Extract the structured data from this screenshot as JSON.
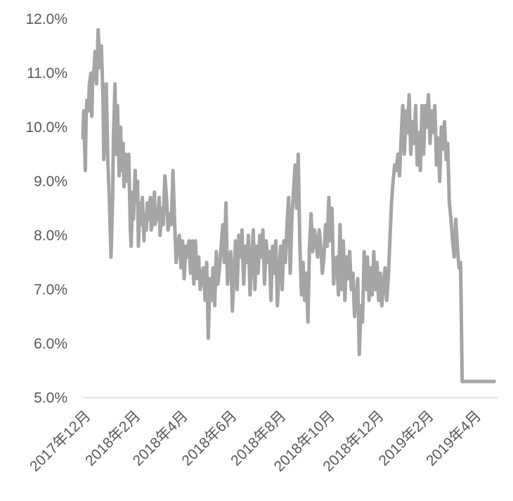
{
  "chart_data": {
    "type": "line",
    "title": "",
    "xlabel": "",
    "ylabel": "",
    "grid": false,
    "legend": "none",
    "line_color": "#a5a5a5",
    "text_color": "#595959",
    "axis_color": "#d9d9d9",
    "ylim": [
      0.05,
      0.12
    ],
    "x_range": [
      "2017-12-01",
      "2019-05-01"
    ],
    "yticks": [
      {
        "value": 0.05,
        "label": "5.0%"
      },
      {
        "value": 0.06,
        "label": "6.0%"
      },
      {
        "value": 0.07,
        "label": "7.0%"
      },
      {
        "value": 0.08,
        "label": "8.0%"
      },
      {
        "value": 0.09,
        "label": "9.0%"
      },
      {
        "value": 0.1,
        "label": "10.0%"
      },
      {
        "value": 0.11,
        "label": "11.0%"
      },
      {
        "value": 0.12,
        "label": "12.0%"
      }
    ],
    "xticks": [
      {
        "date": "2017-12-01",
        "label": "2017年12月"
      },
      {
        "date": "2018-02-01",
        "label": "2018年2月"
      },
      {
        "date": "2018-04-01",
        "label": "2018年4月"
      },
      {
        "date": "2018-06-01",
        "label": "2018年6月"
      },
      {
        "date": "2018-08-01",
        "label": "2018年8月"
      },
      {
        "date": "2018-10-01",
        "label": "2018年10月"
      },
      {
        "date": "2018-12-01",
        "label": "2018年12月"
      },
      {
        "date": "2019-02-01",
        "label": "2019年2月"
      },
      {
        "date": "2019-04-01",
        "label": "2019年4月"
      }
    ],
    "series": [
      {
        "x": [
          "2017-12-01",
          "2017-12-02",
          "2017-12-04",
          "2017-12-05",
          "2017-12-06",
          "2017-12-08",
          "2017-12-09",
          "2017-12-11",
          "2017-12-12",
          "2017-12-13",
          "2017-12-15",
          "2017-12-16",
          "2017-12-18",
          "2017-12-20",
          "2017-12-22",
          "2017-12-24",
          "2017-12-26",
          "2017-12-27",
          "2017-12-29",
          "2017-12-30",
          "2018-01-01",
          "2018-01-02",
          "2018-01-03",
          "2018-01-05",
          "2018-01-07",
          "2018-01-08",
          "2018-01-10",
          "2018-01-11",
          "2018-01-13",
          "2018-01-15",
          "2018-01-17",
          "2018-01-18",
          "2018-01-20",
          "2018-01-21",
          "2018-01-23",
          "2018-01-25",
          "2018-01-27",
          "2018-01-29",
          "2018-01-30",
          "2018-02-01",
          "2018-02-02",
          "2018-02-04",
          "2018-02-05",
          "2018-02-07",
          "2018-02-08",
          "2018-02-10",
          "2018-02-11",
          "2018-02-13",
          "2018-02-15",
          "2018-02-16",
          "2018-02-18",
          "2018-02-19",
          "2018-02-21",
          "2018-02-23",
          "2018-02-24",
          "2018-02-26",
          "2018-02-28",
          "2018-03-01",
          "2018-03-03",
          "2018-03-04",
          "2018-03-06",
          "2018-03-07",
          "2018-03-09",
          "2018-03-11",
          "2018-03-13",
          "2018-03-15",
          "2018-03-17",
          "2018-03-19",
          "2018-03-21",
          "2018-03-23",
          "2018-03-25",
          "2018-03-27",
          "2018-03-29",
          "2018-03-31",
          "2018-04-02",
          "2018-04-04",
          "2018-04-06",
          "2018-04-08",
          "2018-04-10",
          "2018-04-12",
          "2018-04-14",
          "2018-04-16",
          "2018-04-18",
          "2018-04-20",
          "2018-04-22",
          "2018-04-24",
          "2018-04-26",
          "2018-04-28",
          "2018-04-30",
          "2018-05-02",
          "2018-05-04",
          "2018-05-06",
          "2018-05-08",
          "2018-05-10",
          "2018-05-12",
          "2018-05-14",
          "2018-05-16",
          "2018-05-18",
          "2018-05-20",
          "2018-05-22",
          "2018-05-24",
          "2018-05-26",
          "2018-05-28",
          "2018-05-30",
          "2018-06-01",
          "2018-06-03",
          "2018-06-05",
          "2018-06-07",
          "2018-06-09",
          "2018-06-11",
          "2018-06-13",
          "2018-06-15",
          "2018-06-17",
          "2018-06-19",
          "2018-06-21",
          "2018-06-23",
          "2018-06-25",
          "2018-06-27",
          "2018-06-29",
          "2018-07-01",
          "2018-07-03",
          "2018-07-05",
          "2018-07-07",
          "2018-07-09",
          "2018-07-11",
          "2018-07-13",
          "2018-07-15",
          "2018-07-17",
          "2018-07-19",
          "2018-07-21",
          "2018-07-23",
          "2018-07-25",
          "2018-07-27",
          "2018-07-29",
          "2018-07-31",
          "2018-08-02",
          "2018-08-04",
          "2018-08-06",
          "2018-08-08",
          "2018-08-10",
          "2018-08-12",
          "2018-08-14",
          "2018-08-16",
          "2018-08-18",
          "2018-08-20",
          "2018-08-22",
          "2018-08-24",
          "2018-08-26",
          "2018-08-28",
          "2018-08-30",
          "2018-09-01",
          "2018-09-03",
          "2018-09-05",
          "2018-09-07",
          "2018-09-09",
          "2018-09-11",
          "2018-09-13",
          "2018-09-15",
          "2018-09-17",
          "2018-09-19",
          "2018-09-21",
          "2018-09-23",
          "2018-09-25",
          "2018-09-27",
          "2018-09-29",
          "2018-10-01",
          "2018-10-03",
          "2018-10-05",
          "2018-10-07",
          "2018-10-09",
          "2018-10-11",
          "2018-10-13",
          "2018-10-15",
          "2018-10-17",
          "2018-10-19",
          "2018-10-21",
          "2018-10-23",
          "2018-10-25",
          "2018-10-27",
          "2018-10-29",
          "2018-10-31",
          "2018-11-02",
          "2018-11-04",
          "2018-11-06",
          "2018-11-08",
          "2018-11-10",
          "2018-11-12",
          "2018-11-14",
          "2018-11-16",
          "2018-11-18",
          "2018-11-20",
          "2018-11-22",
          "2018-11-24",
          "2018-11-26",
          "2018-11-28",
          "2018-11-30",
          "2018-12-02",
          "2018-12-04",
          "2018-12-06",
          "2018-12-08",
          "2018-12-10",
          "2018-12-12",
          "2018-12-14",
          "2018-12-16",
          "2018-12-18",
          "2018-12-20",
          "2018-12-22",
          "2018-12-24",
          "2018-12-26",
          "2018-12-28",
          "2018-12-30",
          "2019-01-01",
          "2019-01-03",
          "2019-01-05",
          "2019-01-07",
          "2019-01-09",
          "2019-01-11",
          "2019-01-13",
          "2019-01-15",
          "2019-01-17",
          "2019-01-19",
          "2019-01-21",
          "2019-01-23",
          "2019-01-25",
          "2019-01-27",
          "2019-01-29",
          "2019-01-31",
          "2019-02-02",
          "2019-02-04",
          "2019-02-06",
          "2019-02-08",
          "2019-02-10",
          "2019-02-12",
          "2019-02-14",
          "2019-02-16",
          "2019-02-18",
          "2019-02-20",
          "2019-02-22",
          "2019-02-24",
          "2019-02-26",
          "2019-02-28",
          "2019-03-02",
          "2019-03-04",
          "2019-03-06",
          "2019-03-08",
          "2019-03-10",
          "2019-03-12",
          "2019-03-14",
          "2019-03-16",
          "2019-03-18",
          "2019-03-20",
          "2019-03-22",
          "2019-03-24",
          "2019-03-26",
          "2019-03-28",
          "2019-03-30",
          "2019-04-01",
          "2019-04-03",
          "2019-04-05",
          "2019-04-07",
          "2019-04-09",
          "2019-04-11",
          "2019-04-13",
          "2019-04-15",
          "2019-04-17",
          "2019-04-19",
          "2019-04-21",
          "2019-04-23",
          "2019-04-25",
          "2019-04-27"
        ],
        "y": [
          0.098,
          0.103,
          0.092,
          0.102,
          0.105,
          0.103,
          0.108,
          0.11,
          0.102,
          0.108,
          0.111,
          0.114,
          0.108,
          0.118,
          0.111,
          0.115,
          0.105,
          0.094,
          0.101,
          0.108,
          0.094,
          0.09,
          0.086,
          0.076,
          0.087,
          0.098,
          0.108,
          0.095,
          0.104,
          0.091,
          0.1,
          0.092,
          0.097,
          0.089,
          0.095,
          0.09,
          0.095,
          0.081,
          0.078,
          0.088,
          0.083,
          0.092,
          0.086,
          0.09,
          0.078,
          0.086,
          0.082,
          0.087,
          0.079,
          0.084,
          0.081,
          0.086,
          0.083,
          0.087,
          0.081,
          0.083,
          0.088,
          0.082,
          0.085,
          0.083,
          0.087,
          0.08,
          0.085,
          0.082,
          0.091,
          0.087,
          0.081,
          0.084,
          0.082,
          0.092,
          0.083,
          0.075,
          0.078,
          0.08,
          0.074,
          0.079,
          0.072,
          0.078,
          0.076,
          0.079,
          0.073,
          0.079,
          0.071,
          0.079,
          0.072,
          0.076,
          0.07,
          0.073,
          0.074,
          0.068,
          0.075,
          0.061,
          0.072,
          0.068,
          0.074,
          0.067,
          0.077,
          0.071,
          0.074,
          0.078,
          0.082,
          0.075,
          0.086,
          0.071,
          0.076,
          0.077,
          0.066,
          0.073,
          0.079,
          0.07,
          0.08,
          0.076,
          0.081,
          0.071,
          0.078,
          0.075,
          0.08,
          0.069,
          0.075,
          0.081,
          0.07,
          0.078,
          0.073,
          0.08,
          0.076,
          0.081,
          0.071,
          0.079,
          0.075,
          0.077,
          0.068,
          0.078,
          0.073,
          0.079,
          0.067,
          0.073,
          0.078,
          0.07,
          0.079,
          0.075,
          0.082,
          0.087,
          0.073,
          0.083,
          0.088,
          0.093,
          0.085,
          0.095,
          0.078,
          0.069,
          0.075,
          0.068,
          0.073,
          0.064,
          0.078,
          0.084,
          0.077,
          0.081,
          0.079,
          0.076,
          0.081,
          0.078,
          0.073,
          0.076,
          0.082,
          0.078,
          0.087,
          0.079,
          0.085,
          0.071,
          0.075,
          0.076,
          0.069,
          0.082,
          0.07,
          0.079,
          0.068,
          0.076,
          0.072,
          0.077,
          0.07,
          0.073,
          0.065,
          0.068,
          0.072,
          0.058,
          0.067,
          0.064,
          0.077,
          0.07,
          0.076,
          0.068,
          0.074,
          0.069,
          0.077,
          0.07,
          0.075,
          0.068,
          0.073,
          0.067,
          0.071,
          0.074,
          0.068,
          0.072,
          0.079,
          0.086,
          0.09,
          0.093,
          0.092,
          0.095,
          0.091,
          0.098,
          0.104,
          0.095,
          0.103,
          0.099,
          0.106,
          0.095,
          0.101,
          0.097,
          0.104,
          0.093,
          0.099,
          0.092,
          0.104,
          0.095,
          0.104,
          0.1,
          0.106,
          0.097,
          0.103,
          0.099,
          0.104,
          0.093,
          0.098,
          0.09,
          0.1,
          0.096,
          0.101,
          0.094,
          0.097,
          0.086,
          0.083,
          0.079,
          0.076,
          0.083,
          0.078,
          0.074,
          0.075,
          0.053,
          0.053,
          0.053,
          0.053,
          0.053,
          0.053,
          0.053,
          0.053,
          0.053,
          0.053,
          0.053,
          0.053,
          0.053,
          0.053,
          0.053,
          0.053,
          0.053,
          0.053,
          0.053,
          0.053,
          0.053
        ]
      }
    ]
  }
}
